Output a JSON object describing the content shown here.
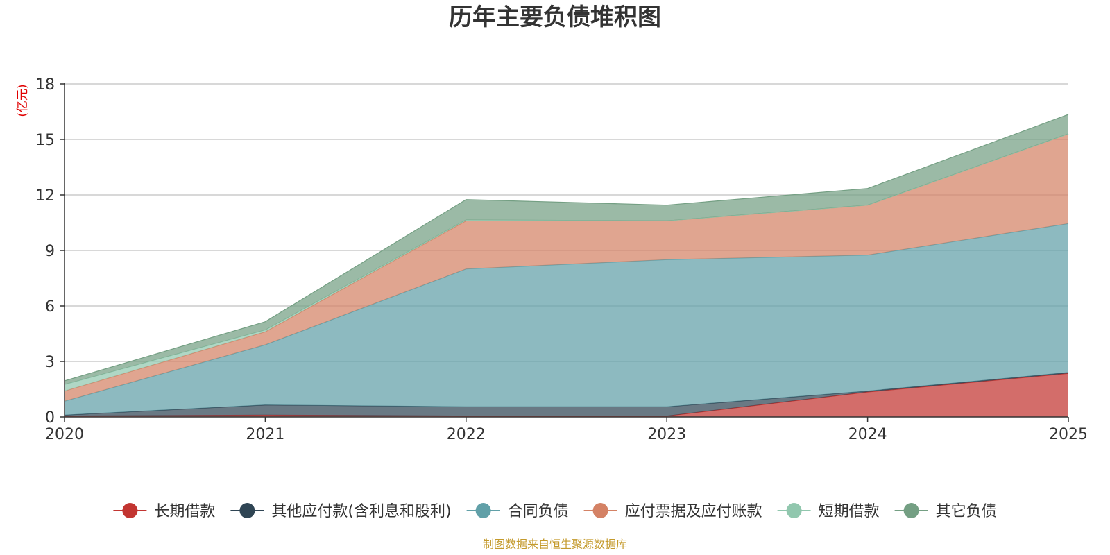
{
  "chart_data": {
    "type": "area",
    "stacked": true,
    "title": "历年主要负债堆积图",
    "ylabel": "(亿元)",
    "xlabel": "",
    "x": [
      "2020",
      "2021",
      "2022",
      "2023",
      "2024",
      "2025"
    ],
    "ylim": [
      0,
      18
    ],
    "yticks": [
      0,
      3,
      6,
      9,
      12,
      15,
      18
    ],
    "grid": true,
    "legend_position": "bottom",
    "series": [
      {
        "name": "长期借款",
        "color": "#c23531",
        "values": [
          0.05,
          0.1,
          0.05,
          0.05,
          1.35,
          2.35
        ]
      },
      {
        "name": "其他应付款(含利息和股利)",
        "color": "#2f4554",
        "values": [
          0.05,
          0.55,
          0.5,
          0.5,
          0.05,
          0.05
        ]
      },
      {
        "name": "合同负债",
        "color": "#61a0a8",
        "values": [
          0.75,
          3.25,
          7.45,
          7.95,
          7.35,
          8.05
        ]
      },
      {
        "name": "应付票据及应付账款",
        "color": "#d48265",
        "values": [
          0.55,
          0.7,
          2.6,
          2.1,
          2.7,
          4.85
        ]
      },
      {
        "name": "短期借款",
        "color": "#91c7ae",
        "values": [
          0.35,
          0.1,
          0.05,
          0.0,
          0.0,
          0.0
        ]
      },
      {
        "name": "其它负债",
        "color": "#749f83",
        "values": [
          0.2,
          0.45,
          1.1,
          0.85,
          0.9,
          1.05
        ]
      }
    ]
  },
  "colors": {
    "axis": "#333333",
    "grid": "#cccccc",
    "unit": "#e00000",
    "source": "#c49a2c"
  },
  "source_text": "制图数据来自恒生聚源数据库"
}
